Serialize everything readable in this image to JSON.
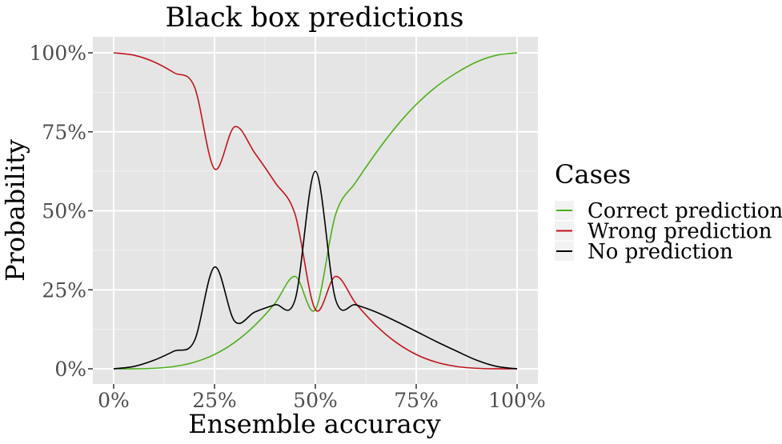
{
  "chart_data": {
    "type": "line",
    "title": "Black box predictions",
    "xlabel": "Ensemble accuracy",
    "ylabel": "Probability",
    "xlim": [
      0,
      1
    ],
    "ylim": [
      0,
      1
    ],
    "x_ticks": [
      0,
      0.25,
      0.5,
      0.75,
      1.0
    ],
    "x_tick_labels": [
      "0%",
      "25%",
      "50%",
      "75%",
      "100%"
    ],
    "y_ticks": [
      0,
      0.25,
      0.5,
      0.75,
      1.0
    ],
    "y_tick_labels": [
      "0%",
      "25%",
      "50%",
      "75%",
      "100%"
    ],
    "grid": true,
    "legend": {
      "title": "Cases",
      "placement": "right"
    },
    "x": [
      0,
      0.05,
      0.1,
      0.15,
      0.2,
      0.25,
      0.3,
      0.35,
      0.4,
      0.45,
      0.5,
      0.55,
      0.6,
      0.65,
      0.7,
      0.75,
      0.8,
      0.85,
      0.9,
      0.95,
      1.0
    ],
    "series": [
      {
        "name": "Correct prediction",
        "color": "#4daf1a",
        "values": [
          0,
          0.0001,
          0.0016,
          0.0073,
          0.0208,
          0.0453,
          0.0837,
          0.1376,
          0.2074,
          0.2924,
          0.1875,
          0.4878,
          0.5901,
          0.6826,
          0.766,
          0.8364,
          0.8931,
          0.9367,
          0.9712,
          0.9925,
          1.0
        ]
      },
      {
        "name": "Wrong prediction",
        "color": "#c0141c",
        "values": [
          1.0,
          0.9925,
          0.9712,
          0.9367,
          0.8931,
          0.6328,
          0.766,
          0.6826,
          0.5901,
          0.4878,
          0.1875,
          0.2924,
          0.2074,
          0.1376,
          0.0837,
          0.0453,
          0.0208,
          0.0073,
          0.0016,
          0.0001,
          0
        ]
      },
      {
        "name": "No prediction",
        "color": "#000000",
        "values": [
          0,
          0.0074,
          0.0272,
          0.0561,
          0.0881,
          0.3219,
          0.1503,
          0.1798,
          0.2025,
          0.2198,
          0.625,
          0.2198,
          0.2025,
          0.1798,
          0.1503,
          0.1183,
          0.0861,
          0.056,
          0.0272,
          0.0074,
          0
        ]
      }
    ]
  }
}
